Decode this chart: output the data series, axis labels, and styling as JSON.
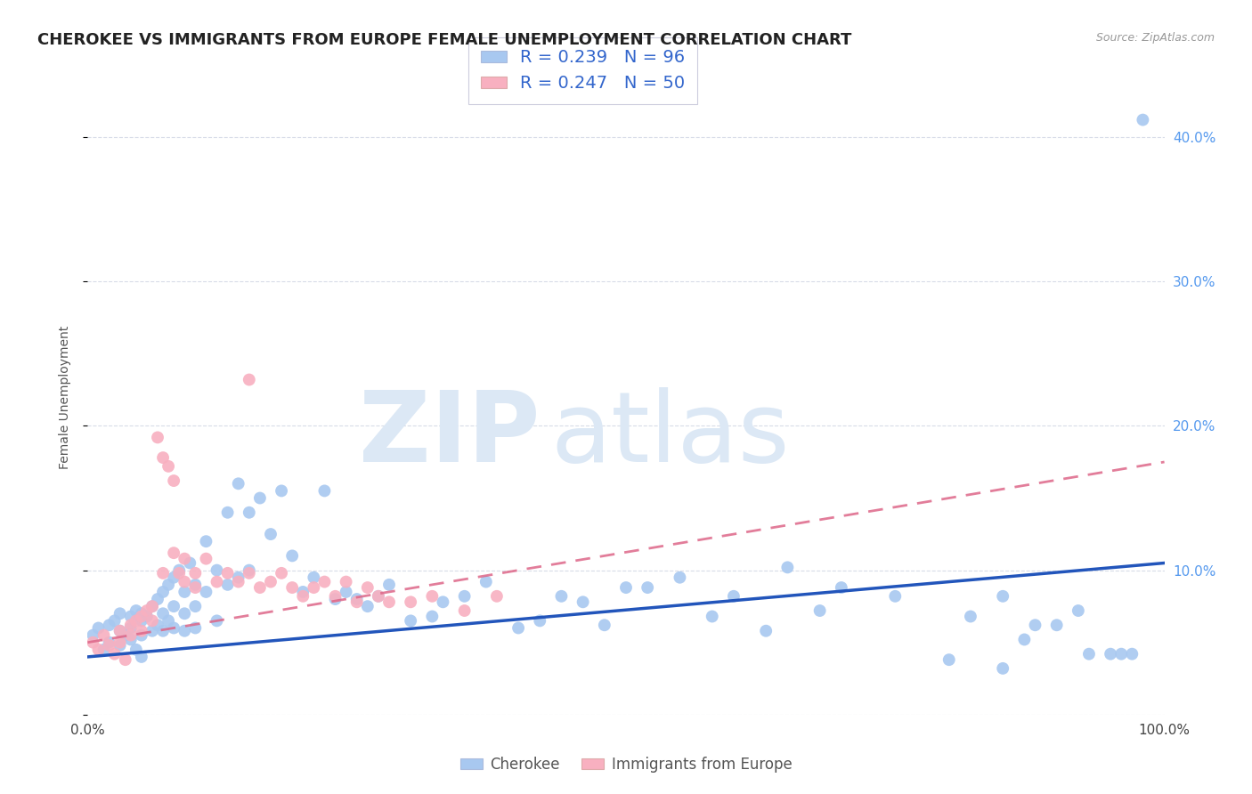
{
  "title": "CHEROKEE VS IMMIGRANTS FROM EUROPE FEMALE UNEMPLOYMENT CORRELATION CHART",
  "source": "Source: ZipAtlas.com",
  "ylabel": "Female Unemployment",
  "xlim": [
    0.0,
    1.0
  ],
  "ylim": [
    0.0,
    0.44
  ],
  "xticks": [
    0.0,
    0.25,
    0.5,
    0.75,
    1.0
  ],
  "xticklabels": [
    "0.0%",
    "",
    "",
    "",
    "100.0%"
  ],
  "ytick_positions": [
    0.0,
    0.1,
    0.2,
    0.3,
    0.4
  ],
  "yticklabels_right": [
    "",
    "10.0%",
    "20.0%",
    "30.0%",
    "40.0%"
  ],
  "cherokee_color": "#a8c8f0",
  "cherokee_line_color": "#2255bb",
  "immigrants_color": "#f8b0c0",
  "immigrants_line_color": "#dd6688",
  "cherokee_R": 0.239,
  "cherokee_N": 96,
  "immigrants_R": 0.247,
  "immigrants_N": 50,
  "cherokee_x": [
    0.005,
    0.01,
    0.015,
    0.02,
    0.02,
    0.025,
    0.03,
    0.03,
    0.03,
    0.035,
    0.04,
    0.04,
    0.04,
    0.045,
    0.045,
    0.05,
    0.05,
    0.05,
    0.05,
    0.055,
    0.06,
    0.06,
    0.065,
    0.065,
    0.07,
    0.07,
    0.07,
    0.075,
    0.075,
    0.08,
    0.08,
    0.08,
    0.085,
    0.09,
    0.09,
    0.09,
    0.095,
    0.1,
    0.1,
    0.1,
    0.11,
    0.11,
    0.12,
    0.12,
    0.13,
    0.13,
    0.14,
    0.14,
    0.15,
    0.15,
    0.16,
    0.17,
    0.18,
    0.19,
    0.2,
    0.21,
    0.22,
    0.23,
    0.24,
    0.25,
    0.26,
    0.27,
    0.28,
    0.3,
    0.32,
    0.33,
    0.35,
    0.37,
    0.4,
    0.42,
    0.44,
    0.46,
    0.48,
    0.5,
    0.52,
    0.55,
    0.58,
    0.6,
    0.63,
    0.65,
    0.68,
    0.7,
    0.75,
    0.8,
    0.82,
    0.85,
    0.88,
    0.9,
    0.92,
    0.95,
    0.97,
    0.98,
    0.85,
    0.87,
    0.93,
    0.96
  ],
  "cherokee_y": [
    0.055,
    0.06,
    0.045,
    0.062,
    0.05,
    0.065,
    0.058,
    0.048,
    0.07,
    0.055,
    0.06,
    0.052,
    0.068,
    0.045,
    0.072,
    0.065,
    0.055,
    0.07,
    0.04,
    0.068,
    0.075,
    0.058,
    0.08,
    0.062,
    0.085,
    0.07,
    0.058,
    0.09,
    0.065,
    0.095,
    0.075,
    0.06,
    0.1,
    0.085,
    0.07,
    0.058,
    0.105,
    0.09,
    0.075,
    0.06,
    0.12,
    0.085,
    0.1,
    0.065,
    0.14,
    0.09,
    0.16,
    0.095,
    0.14,
    0.1,
    0.15,
    0.125,
    0.155,
    0.11,
    0.085,
    0.095,
    0.155,
    0.08,
    0.085,
    0.08,
    0.075,
    0.082,
    0.09,
    0.065,
    0.068,
    0.078,
    0.082,
    0.092,
    0.06,
    0.065,
    0.082,
    0.078,
    0.062,
    0.088,
    0.088,
    0.095,
    0.068,
    0.082,
    0.058,
    0.102,
    0.072,
    0.088,
    0.082,
    0.038,
    0.068,
    0.082,
    0.062,
    0.062,
    0.072,
    0.042,
    0.042,
    0.412,
    0.032,
    0.052,
    0.042,
    0.042
  ],
  "immigrants_x": [
    0.005,
    0.01,
    0.015,
    0.02,
    0.025,
    0.03,
    0.03,
    0.035,
    0.04,
    0.04,
    0.045,
    0.05,
    0.05,
    0.055,
    0.06,
    0.06,
    0.065,
    0.07,
    0.07,
    0.075,
    0.08,
    0.08,
    0.085,
    0.09,
    0.09,
    0.1,
    0.1,
    0.11,
    0.12,
    0.13,
    0.14,
    0.15,
    0.16,
    0.17,
    0.18,
    0.19,
    0.2,
    0.21,
    0.22,
    0.23,
    0.24,
    0.25,
    0.26,
    0.27,
    0.28,
    0.3,
    0.32,
    0.35,
    0.38,
    0.15
  ],
  "immigrants_y": [
    0.05,
    0.045,
    0.055,
    0.048,
    0.042,
    0.058,
    0.05,
    0.038,
    0.062,
    0.055,
    0.065,
    0.068,
    0.058,
    0.072,
    0.075,
    0.065,
    0.192,
    0.178,
    0.098,
    0.172,
    0.162,
    0.112,
    0.098,
    0.108,
    0.092,
    0.098,
    0.088,
    0.108,
    0.092,
    0.098,
    0.092,
    0.098,
    0.088,
    0.092,
    0.098,
    0.088,
    0.082,
    0.088,
    0.092,
    0.082,
    0.092,
    0.078,
    0.088,
    0.082,
    0.078,
    0.078,
    0.082,
    0.072,
    0.082,
    0.232
  ],
  "bg_color": "#ffffff",
  "grid_color": "#d8dce8",
  "title_fontsize": 13,
  "axis_label_fontsize": 10,
  "tick_fontsize": 11,
  "legend_fontsize": 14,
  "marker_size": 100
}
